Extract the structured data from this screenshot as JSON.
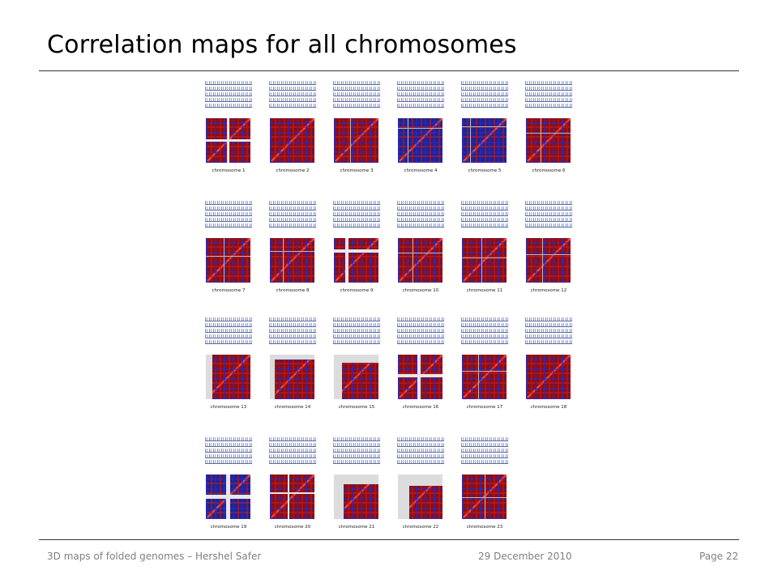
{
  "slide": {
    "title": "Correlation maps for all chromosomes"
  },
  "footer": {
    "left": "3D maps of folded genomes – Hershel Safer",
    "center": "29 December 2010",
    "right": "Page 22"
  },
  "chromosomes": [
    {
      "label": "chromosome 1"
    },
    {
      "label": "chromosome 2"
    },
    {
      "label": "chromosome 3"
    },
    {
      "label": "chromosome 4"
    },
    {
      "label": "chromosome 5"
    },
    {
      "label": "chromosome 6"
    },
    {
      "label": "chromosome 7"
    },
    {
      "label": "chromosome 8"
    },
    {
      "label": "chromosome 9"
    },
    {
      "label": "chromosome 10"
    },
    {
      "label": "chromosome 11"
    },
    {
      "label": "chromosome 12"
    },
    {
      "label": "chromosome 13"
    },
    {
      "label": "chromosome 14"
    },
    {
      "label": "chromosome 15"
    },
    {
      "label": "chromosome 16"
    },
    {
      "label": "chromosome 17"
    },
    {
      "label": "chromosome 18"
    },
    {
      "label": "chromosome 19"
    },
    {
      "label": "chromosome 20"
    },
    {
      "label": "chromosome 21"
    },
    {
      "label": "chromosome 22"
    },
    {
      "label": "chromosome 23"
    }
  ]
}
